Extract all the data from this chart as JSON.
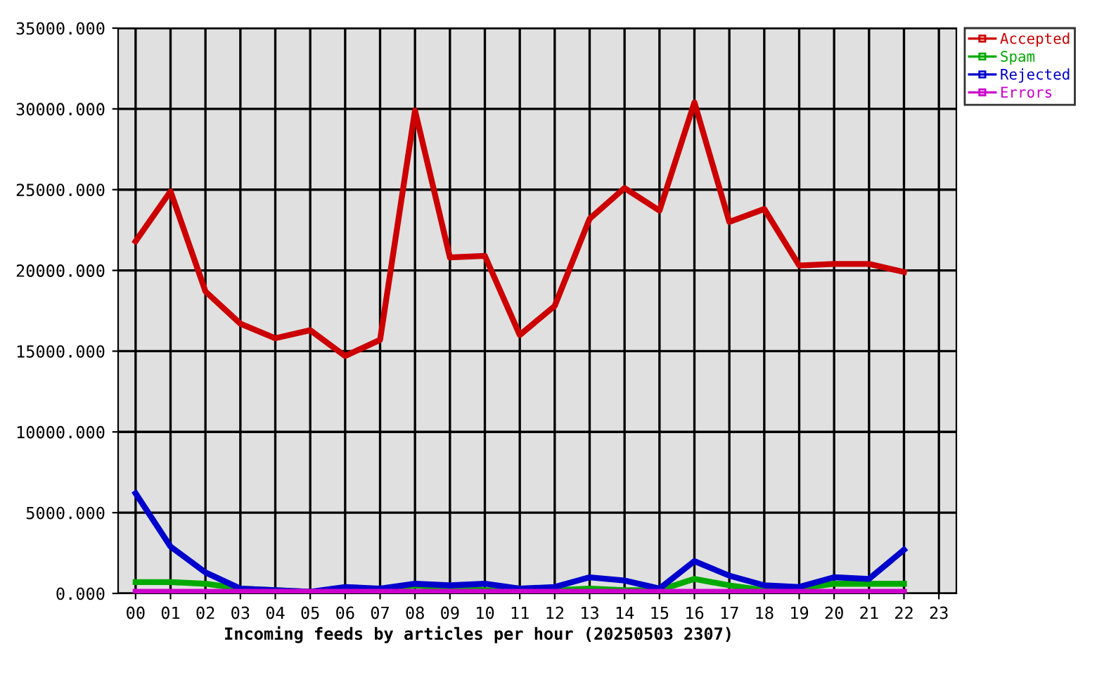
{
  "chart_data": {
    "type": "line",
    "xlabel": "Incoming feeds by articles per hour (20250503 2307)",
    "categories": [
      "00",
      "01",
      "02",
      "03",
      "04",
      "05",
      "06",
      "07",
      "08",
      "09",
      "10",
      "11",
      "12",
      "13",
      "14",
      "15",
      "16",
      "17",
      "18",
      "19",
      "20",
      "21",
      "22",
      "23"
    ],
    "series": [
      {
        "name": "Accepted",
        "color": "#cc0000",
        "values": [
          21800,
          24900,
          18700,
          16700,
          15800,
          16300,
          14700,
          15700,
          29900,
          20800,
          20900,
          16000,
          17800,
          23200,
          25100,
          23700,
          30400,
          23000,
          23800,
          20300,
          20400,
          20400,
          19900,
          null
        ]
      },
      {
        "name": "Spam",
        "color": "#00aa00",
        "values": [
          700,
          700,
          600,
          300,
          200,
          100,
          200,
          200,
          500,
          300,
          200,
          200,
          200,
          300,
          200,
          200,
          900,
          500,
          200,
          300,
          600,
          600,
          600,
          null
        ]
      },
      {
        "name": "Rejected",
        "color": "#0000cc",
        "values": [
          6200,
          2900,
          1300,
          300,
          200,
          100,
          400,
          300,
          600,
          500,
          600,
          300,
          400,
          1000,
          800,
          300,
          2000,
          1100,
          500,
          400,
          1000,
          900,
          2700,
          null
        ]
      },
      {
        "name": "Errors",
        "color": "#cc00cc",
        "values": [
          100,
          100,
          100,
          100,
          100,
          100,
          100,
          100,
          100,
          100,
          100,
          100,
          100,
          100,
          100,
          100,
          100,
          100,
          100,
          100,
          100,
          100,
          100,
          null
        ]
      }
    ],
    "ylim": [
      0,
      35000
    ],
    "yticks": [
      {
        "value": 0,
        "label": "0.000"
      },
      {
        "value": 5000,
        "label": "5000.000"
      },
      {
        "value": 10000,
        "label": "10000.000"
      },
      {
        "value": 15000,
        "label": "15000.000"
      },
      {
        "value": 20000,
        "label": "20000.000"
      },
      {
        "value": 25000,
        "label": "25000.000"
      },
      {
        "value": 30000,
        "label": "30000.000"
      },
      {
        "value": 35000,
        "label": "35000.000"
      }
    ],
    "grid": true,
    "legend": "top right",
    "marker": "none",
    "line_style": "solid"
  }
}
